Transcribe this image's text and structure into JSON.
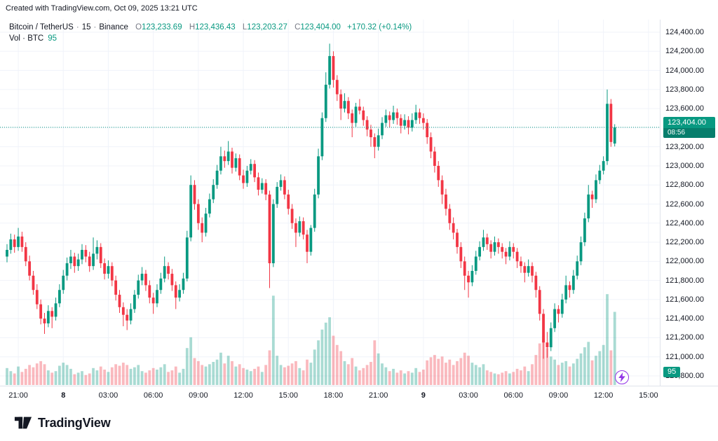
{
  "attribution": "Created with TradingView.com, Oct 09, 2025 13:21 UTC",
  "legend": {
    "symbol": "Bitcoin / TetherUS",
    "separator": "·",
    "interval": "15",
    "exchange": "Binance",
    "ohlc": {
      "o_label": "O",
      "o": "123,233.69",
      "h_label": "H",
      "h": "123,436.43",
      "l_label": "L",
      "l": "123,203.27",
      "c_label": "C",
      "c": "123,404.00",
      "change": "+170.32 (+0.14%)"
    },
    "volume_label": "Vol · BTC",
    "volume_value": "95"
  },
  "price_scale": {
    "last_price": "123,404.00",
    "countdown": "08:56",
    "volume_badge": "95"
  },
  "footer_logo": "TradingView",
  "chart_data": {
    "type": "candlestick",
    "title": "Bitcoin / TetherUS · 15 · Binance",
    "interval_minutes": 15,
    "volume_unit": "BTC",
    "ylim": [
      120800,
      124450
    ],
    "y_tick_step": 200,
    "grid": true,
    "last_candle": {
      "o": 123233.69,
      "h": 123436.43,
      "l": 123203.27,
      "c": 123404.0,
      "v": 95,
      "change": "+170.32 (+0.14%)"
    },
    "colors": {
      "up": "#089981",
      "down": "#f23645",
      "vol_up": "rgba(8,153,129,0.35)",
      "vol_down": "rgba(242,54,69,0.35)",
      "grid": "#f0f3fa",
      "axis_text": "#131722",
      "badge": "#089981"
    },
    "y_ticks": [
      124400,
      124200,
      124000,
      123800,
      123600,
      123400,
      123200,
      123000,
      122800,
      122600,
      122400,
      122200,
      122000,
      121800,
      121600,
      121400,
      121200,
      121000,
      120800
    ],
    "x_ticks": [
      {
        "label": "21:00",
        "i": 3
      },
      {
        "label": "8",
        "i": 15,
        "bold": true
      },
      {
        "label": "03:00",
        "i": 27
      },
      {
        "label": "06:00",
        "i": 39
      },
      {
        "label": "09:00",
        "i": 51
      },
      {
        "label": "12:00",
        "i": 63
      },
      {
        "label": "15:00",
        "i": 75
      },
      {
        "label": "18:00",
        "i": 87
      },
      {
        "label": "21:00",
        "i": 99
      },
      {
        "label": "9",
        "i": 111,
        "bold": true
      },
      {
        "label": "03:00",
        "i": 123
      },
      {
        "label": "06:00",
        "i": 135
      },
      {
        "label": "09:00",
        "i": 147
      },
      {
        "label": "12:00",
        "i": 159
      },
      {
        "label": "15:00",
        "i": 171
      }
    ],
    "candles": [
      [
        122050,
        122180,
        121990,
        122120,
        22
      ],
      [
        122120,
        122290,
        122080,
        122230,
        18
      ],
      [
        122230,
        122280,
        122090,
        122150,
        15
      ],
      [
        122150,
        122350,
        122110,
        122260,
        24
      ],
      [
        122260,
        122310,
        122100,
        122150,
        17
      ],
      [
        122150,
        122200,
        121950,
        122000,
        21
      ],
      [
        122000,
        122060,
        121800,
        121850,
        26
      ],
      [
        121850,
        121900,
        121650,
        121700,
        23
      ],
      [
        121700,
        121760,
        121500,
        121550,
        28
      ],
      [
        121550,
        121600,
        121340,
        121400,
        31
      ],
      [
        121400,
        121460,
        121240,
        121350,
        27
      ],
      [
        121350,
        121540,
        121310,
        121480,
        19
      ],
      [
        121480,
        121520,
        121300,
        121420,
        16
      ],
      [
        121420,
        121620,
        121380,
        121560,
        18
      ],
      [
        121560,
        121760,
        121520,
        121700,
        25
      ],
      [
        121700,
        121910,
        121660,
        121850,
        29
      ],
      [
        121850,
        122040,
        121800,
        121980,
        26
      ],
      [
        121980,
        122120,
        121920,
        122050,
        21
      ],
      [
        122050,
        122090,
        121880,
        121950,
        14
      ],
      [
        121950,
        122080,
        121900,
        122020,
        16
      ],
      [
        122020,
        122180,
        121970,
        122120,
        18
      ],
      [
        122120,
        122170,
        121990,
        122050,
        13
      ],
      [
        122050,
        122100,
        121890,
        121950,
        15
      ],
      [
        121950,
        122250,
        121910,
        122080,
        22
      ],
      [
        122080,
        122220,
        122020,
        122150,
        19
      ],
      [
        122150,
        122190,
        121930,
        121980,
        24
      ],
      [
        121980,
        122030,
        121810,
        121870,
        20
      ],
      [
        121870,
        122010,
        121820,
        121950,
        17
      ],
      [
        121950,
        121990,
        121740,
        121800,
        23
      ],
      [
        121800,
        121850,
        121590,
        121650,
        27
      ],
      [
        121650,
        121700,
        121460,
        121520,
        25
      ],
      [
        121520,
        121570,
        121320,
        121440,
        29
      ],
      [
        121440,
        121500,
        121280,
        121380,
        26
      ],
      [
        121380,
        121560,
        121340,
        121500,
        21
      ],
      [
        121500,
        121700,
        121460,
        121650,
        23
      ],
      [
        121650,
        121860,
        121610,
        121800,
        26
      ],
      [
        121800,
        121940,
        121750,
        121870,
        18
      ],
      [
        121870,
        121910,
        121690,
        121750,
        16
      ],
      [
        121750,
        121800,
        121560,
        121620,
        19
      ],
      [
        121620,
        121670,
        121450,
        121560,
        22
      ],
      [
        121560,
        121760,
        121520,
        121700,
        20
      ],
      [
        121700,
        121880,
        121660,
        121820,
        23
      ],
      [
        121820,
        122050,
        121780,
        121950,
        27
      ],
      [
        121950,
        121990,
        121810,
        121870,
        17
      ],
      [
        121870,
        121920,
        121690,
        121750,
        19
      ],
      [
        121750,
        121790,
        121500,
        121620,
        24
      ],
      [
        121620,
        121760,
        121580,
        121700,
        16
      ],
      [
        121700,
        121880,
        121660,
        121820,
        21
      ],
      [
        121820,
        122320,
        121790,
        122250,
        48
      ],
      [
        122250,
        122900,
        122210,
        122800,
        62
      ],
      [
        122800,
        122850,
        122540,
        122600,
        35
      ],
      [
        122600,
        122650,
        122330,
        122400,
        31
      ],
      [
        122400,
        122460,
        122200,
        122300,
        26
      ],
      [
        122300,
        122560,
        122260,
        122500,
        24
      ],
      [
        122500,
        122710,
        122460,
        122650,
        27
      ],
      [
        122650,
        122860,
        122610,
        122800,
        30
      ],
      [
        122800,
        123010,
        122760,
        122950,
        33
      ],
      [
        122950,
        123200,
        122910,
        123100,
        42
      ],
      [
        123100,
        123160,
        122980,
        123050,
        28
      ],
      [
        123050,
        123260,
        123010,
        123150,
        38
      ],
      [
        123150,
        123190,
        122920,
        122980,
        31
      ],
      [
        122980,
        123130,
        122940,
        123080,
        24
      ],
      [
        123080,
        123120,
        122850,
        122900,
        27
      ],
      [
        122900,
        122960,
        122760,
        122820,
        22
      ],
      [
        122820,
        123000,
        122780,
        122950,
        20
      ],
      [
        122950,
        123070,
        122910,
        123020,
        18
      ],
      [
        123020,
        123060,
        122830,
        122880,
        21
      ],
      [
        122880,
        122930,
        122690,
        122750,
        24
      ],
      [
        122750,
        122870,
        122710,
        122820,
        17
      ],
      [
        122820,
        122860,
        122640,
        122700,
        26
      ],
      [
        122700,
        122740,
        121720,
        121980,
        45
      ],
      [
        121980,
        122650,
        121940,
        122600,
        116
      ],
      [
        122600,
        122830,
        122560,
        122780,
        38
      ],
      [
        122780,
        122910,
        122740,
        122850,
        26
      ],
      [
        122850,
        122890,
        122650,
        122700,
        23
      ],
      [
        122700,
        122750,
        122490,
        122550,
        25
      ],
      [
        122550,
        122600,
        122340,
        122400,
        28
      ],
      [
        122400,
        122450,
        122150,
        122300,
        31
      ],
      [
        122300,
        122470,
        122260,
        122420,
        22
      ],
      [
        122420,
        122460,
        122230,
        122280,
        19
      ],
      [
        122280,
        122330,
        121980,
        122100,
        33
      ],
      [
        122100,
        122380,
        122060,
        122350,
        29
      ],
      [
        122350,
        122760,
        122310,
        122700,
        46
      ],
      [
        122700,
        123180,
        122660,
        123100,
        58
      ],
      [
        123100,
        123560,
        123060,
        123500,
        72
      ],
      [
        123500,
        123980,
        123460,
        123850,
        81
      ],
      [
        123850,
        124280,
        123810,
        124150,
        88
      ],
      [
        124150,
        124200,
        123820,
        123900,
        64
      ],
      [
        123900,
        123950,
        123680,
        123750,
        52
      ],
      [
        123750,
        123800,
        123480,
        123600,
        44
      ],
      [
        123600,
        123760,
        123560,
        123680,
        31
      ],
      [
        123680,
        123720,
        123490,
        123550,
        27
      ],
      [
        123550,
        123590,
        123300,
        123450,
        35
      ],
      [
        123450,
        123660,
        123410,
        123620,
        24
      ],
      [
        123620,
        123700,
        123540,
        123580,
        19
      ],
      [
        123580,
        123620,
        123420,
        123480,
        22
      ],
      [
        123480,
        123520,
        123310,
        123380,
        26
      ],
      [
        123380,
        123430,
        123200,
        123300,
        30
      ],
      [
        123300,
        123340,
        123080,
        123200,
        58
      ],
      [
        123200,
        123390,
        123160,
        123320,
        41
      ],
      [
        123320,
        123510,
        123280,
        123450,
        28
      ],
      [
        123450,
        123590,
        123410,
        123530,
        23
      ],
      [
        123530,
        123570,
        123400,
        123480,
        18
      ],
      [
        123480,
        123630,
        123440,
        123560,
        21
      ],
      [
        123560,
        123600,
        123430,
        123500,
        16
      ],
      [
        123500,
        123540,
        123340,
        123420,
        19
      ],
      [
        123420,
        123540,
        123380,
        123480,
        15
      ],
      [
        123480,
        123520,
        123330,
        123400,
        18
      ],
      [
        123400,
        123550,
        123360,
        123480,
        16
      ],
      [
        123480,
        123640,
        123440,
        123560,
        22
      ],
      [
        123560,
        123600,
        123440,
        123500,
        17
      ],
      [
        123500,
        123550,
        123380,
        123450,
        20
      ],
      [
        123450,
        123490,
        123230,
        123300,
        32
      ],
      [
        123300,
        123350,
        123080,
        123150,
        36
      ],
      [
        123150,
        123200,
        122930,
        123000,
        39
      ],
      [
        123000,
        123050,
        122780,
        122850,
        34
      ],
      [
        122850,
        122900,
        122600,
        122700,
        37
      ],
      [
        122700,
        122760,
        122480,
        122550,
        29
      ],
      [
        122550,
        122600,
        122330,
        122400,
        33
      ],
      [
        122400,
        122460,
        122230,
        122300,
        26
      ],
      [
        122300,
        122340,
        122080,
        122150,
        31
      ],
      [
        122150,
        122200,
        121930,
        122000,
        35
      ],
      [
        122000,
        122050,
        121700,
        121850,
        42
      ],
      [
        121850,
        121900,
        121620,
        121780,
        38
      ],
      [
        121780,
        121960,
        121740,
        121900,
        29
      ],
      [
        121900,
        122110,
        121860,
        122050,
        26
      ],
      [
        122050,
        122210,
        122010,
        122150,
        23
      ],
      [
        122150,
        122330,
        122110,
        122250,
        27
      ],
      [
        122250,
        122290,
        122120,
        122180,
        19
      ],
      [
        122180,
        122220,
        122030,
        122100,
        17
      ],
      [
        122100,
        122260,
        122060,
        122200,
        15
      ],
      [
        122200,
        122240,
        122080,
        122150,
        14
      ],
      [
        122150,
        122190,
        122030,
        122100,
        16
      ],
      [
        122100,
        122140,
        121970,
        122050,
        18
      ],
      [
        122050,
        122210,
        122010,
        122150,
        15
      ],
      [
        122150,
        122190,
        122030,
        122100,
        17
      ],
      [
        122100,
        122140,
        121930,
        122000,
        21
      ],
      [
        122000,
        122050,
        121880,
        121950,
        19
      ],
      [
        121950,
        121990,
        121780,
        121880,
        24
      ],
      [
        121880,
        122020,
        121840,
        121950,
        18
      ],
      [
        121950,
        121990,
        121780,
        121850,
        27
      ],
      [
        121850,
        121890,
        121620,
        121700,
        39
      ],
      [
        121700,
        121740,
        121380,
        121450,
        54
      ],
      [
        121450,
        121500,
        120980,
        121150,
        63
      ],
      [
        121150,
        121260,
        120990,
        121100,
        48
      ],
      [
        121100,
        121360,
        121060,
        121300,
        37
      ],
      [
        121300,
        121560,
        121260,
        121500,
        33
      ],
      [
        121500,
        121540,
        121360,
        121450,
        26
      ],
      [
        121450,
        121660,
        121410,
        121600,
        29
      ],
      [
        121600,
        121850,
        121560,
        121750,
        31
      ],
      [
        121750,
        121790,
        121620,
        121700,
        24
      ],
      [
        121700,
        121910,
        121660,
        121850,
        28
      ],
      [
        121850,
        122060,
        121810,
        122000,
        34
      ],
      [
        122000,
        122260,
        121960,
        122200,
        41
      ],
      [
        122200,
        122510,
        122160,
        122450,
        49
      ],
      [
        122450,
        122800,
        122410,
        122700,
        56
      ],
      [
        122700,
        122740,
        122560,
        122650,
        32
      ],
      [
        122650,
        122910,
        122610,
        122850,
        38
      ],
      [
        122850,
        123010,
        122810,
        122950,
        44
      ],
      [
        122950,
        123100,
        122910,
        123050,
        52
      ],
      [
        123050,
        123800,
        123010,
        123650,
        118
      ],
      [
        123650,
        123700,
        123200,
        123250,
        45
      ],
      [
        123233.69,
        123436.43,
        123203.27,
        123404.0,
        95
      ]
    ]
  }
}
